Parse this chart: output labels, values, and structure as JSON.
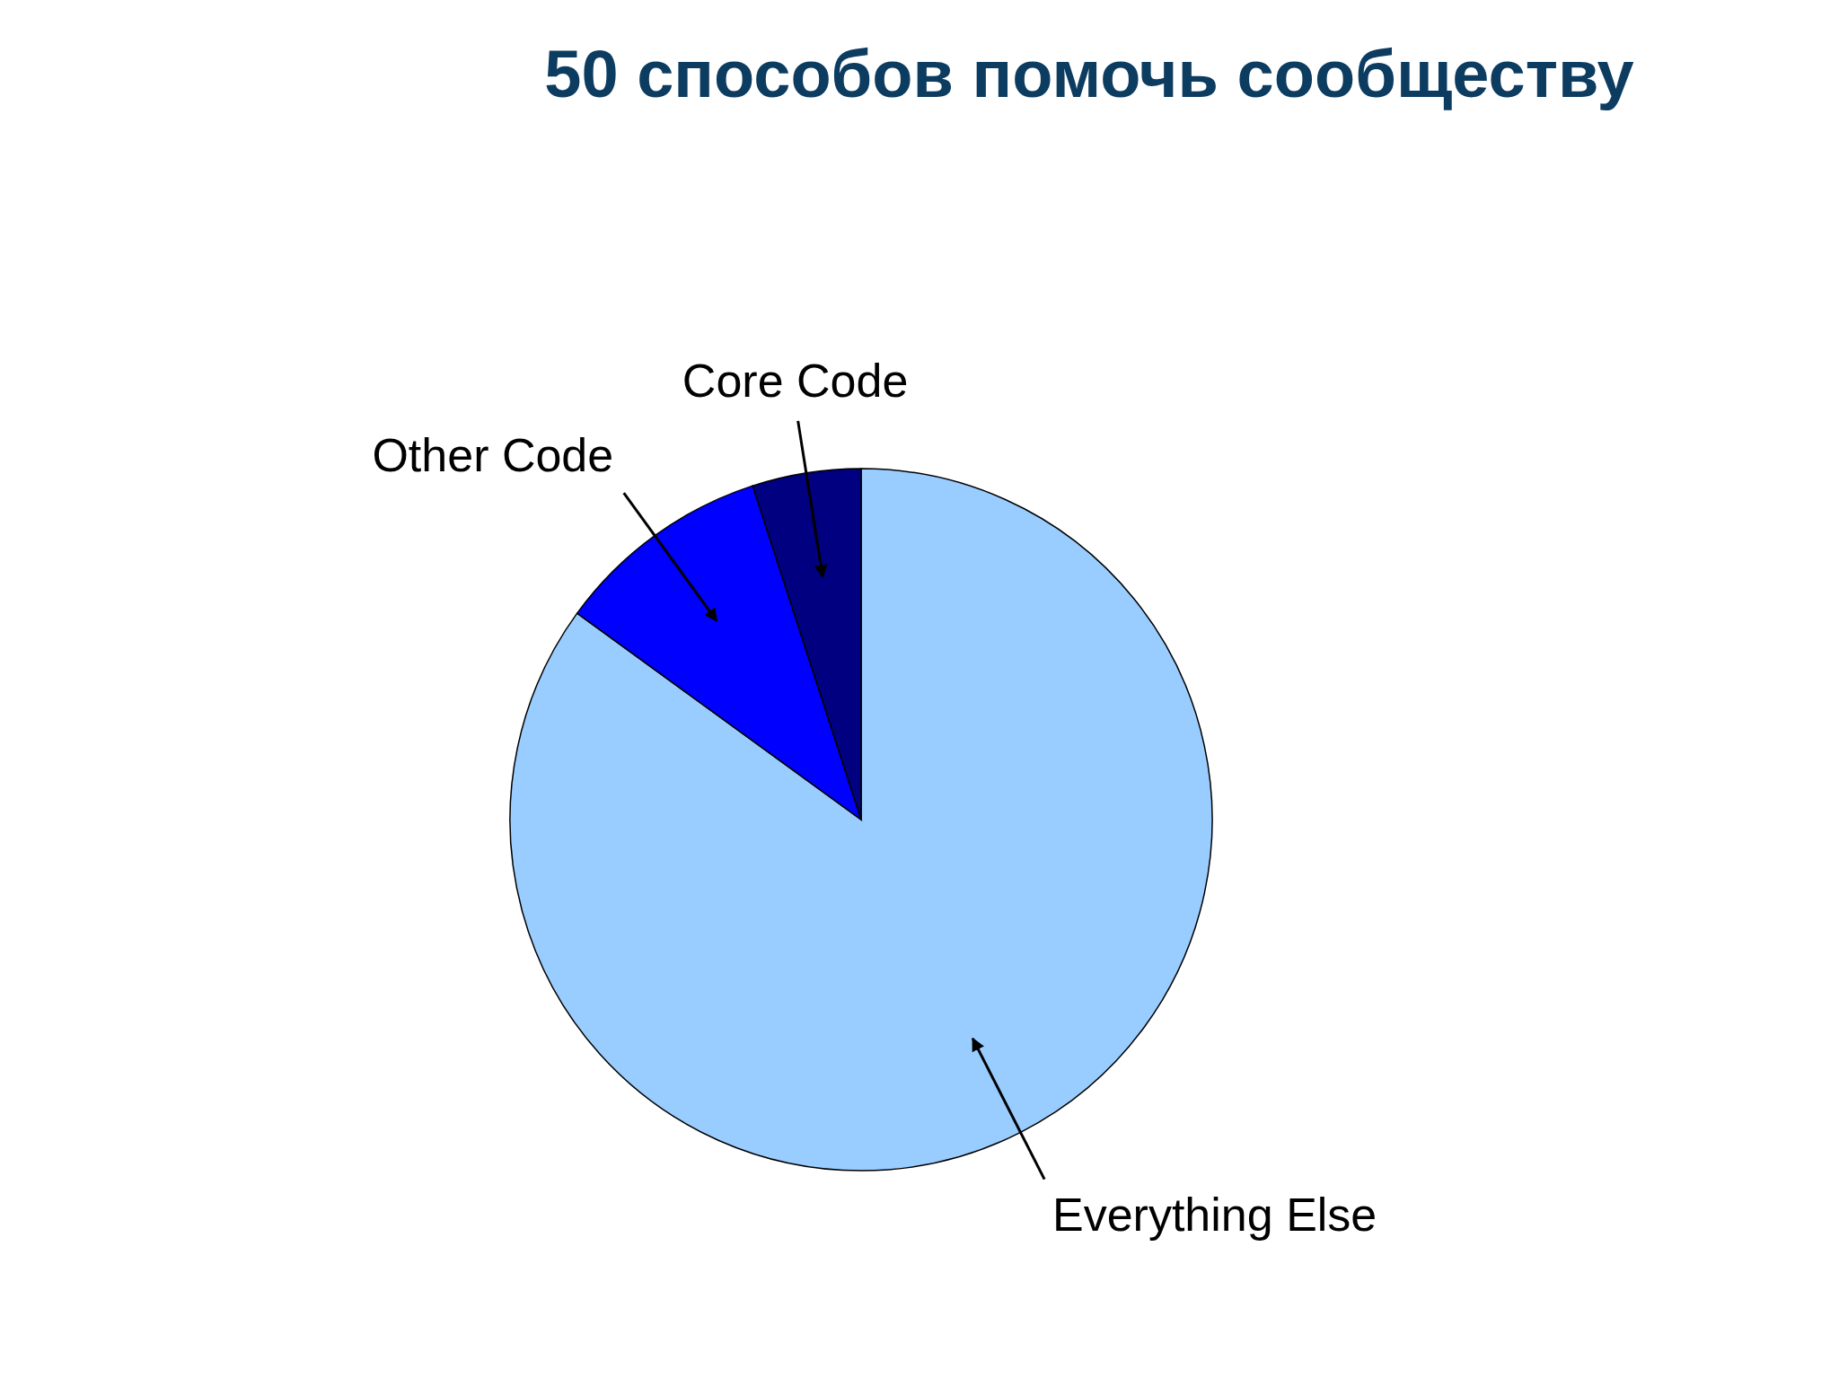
{
  "chart_data": {
    "type": "pie",
    "title": "50 способов помочь сообществу",
    "categories": [
      "Everything Else",
      "Other Code",
      "Core Code"
    ],
    "values": [
      85,
      10,
      5
    ],
    "colors": [
      "#99ccff",
      "#0000ff",
      "#000080"
    ],
    "legend": false
  }
}
